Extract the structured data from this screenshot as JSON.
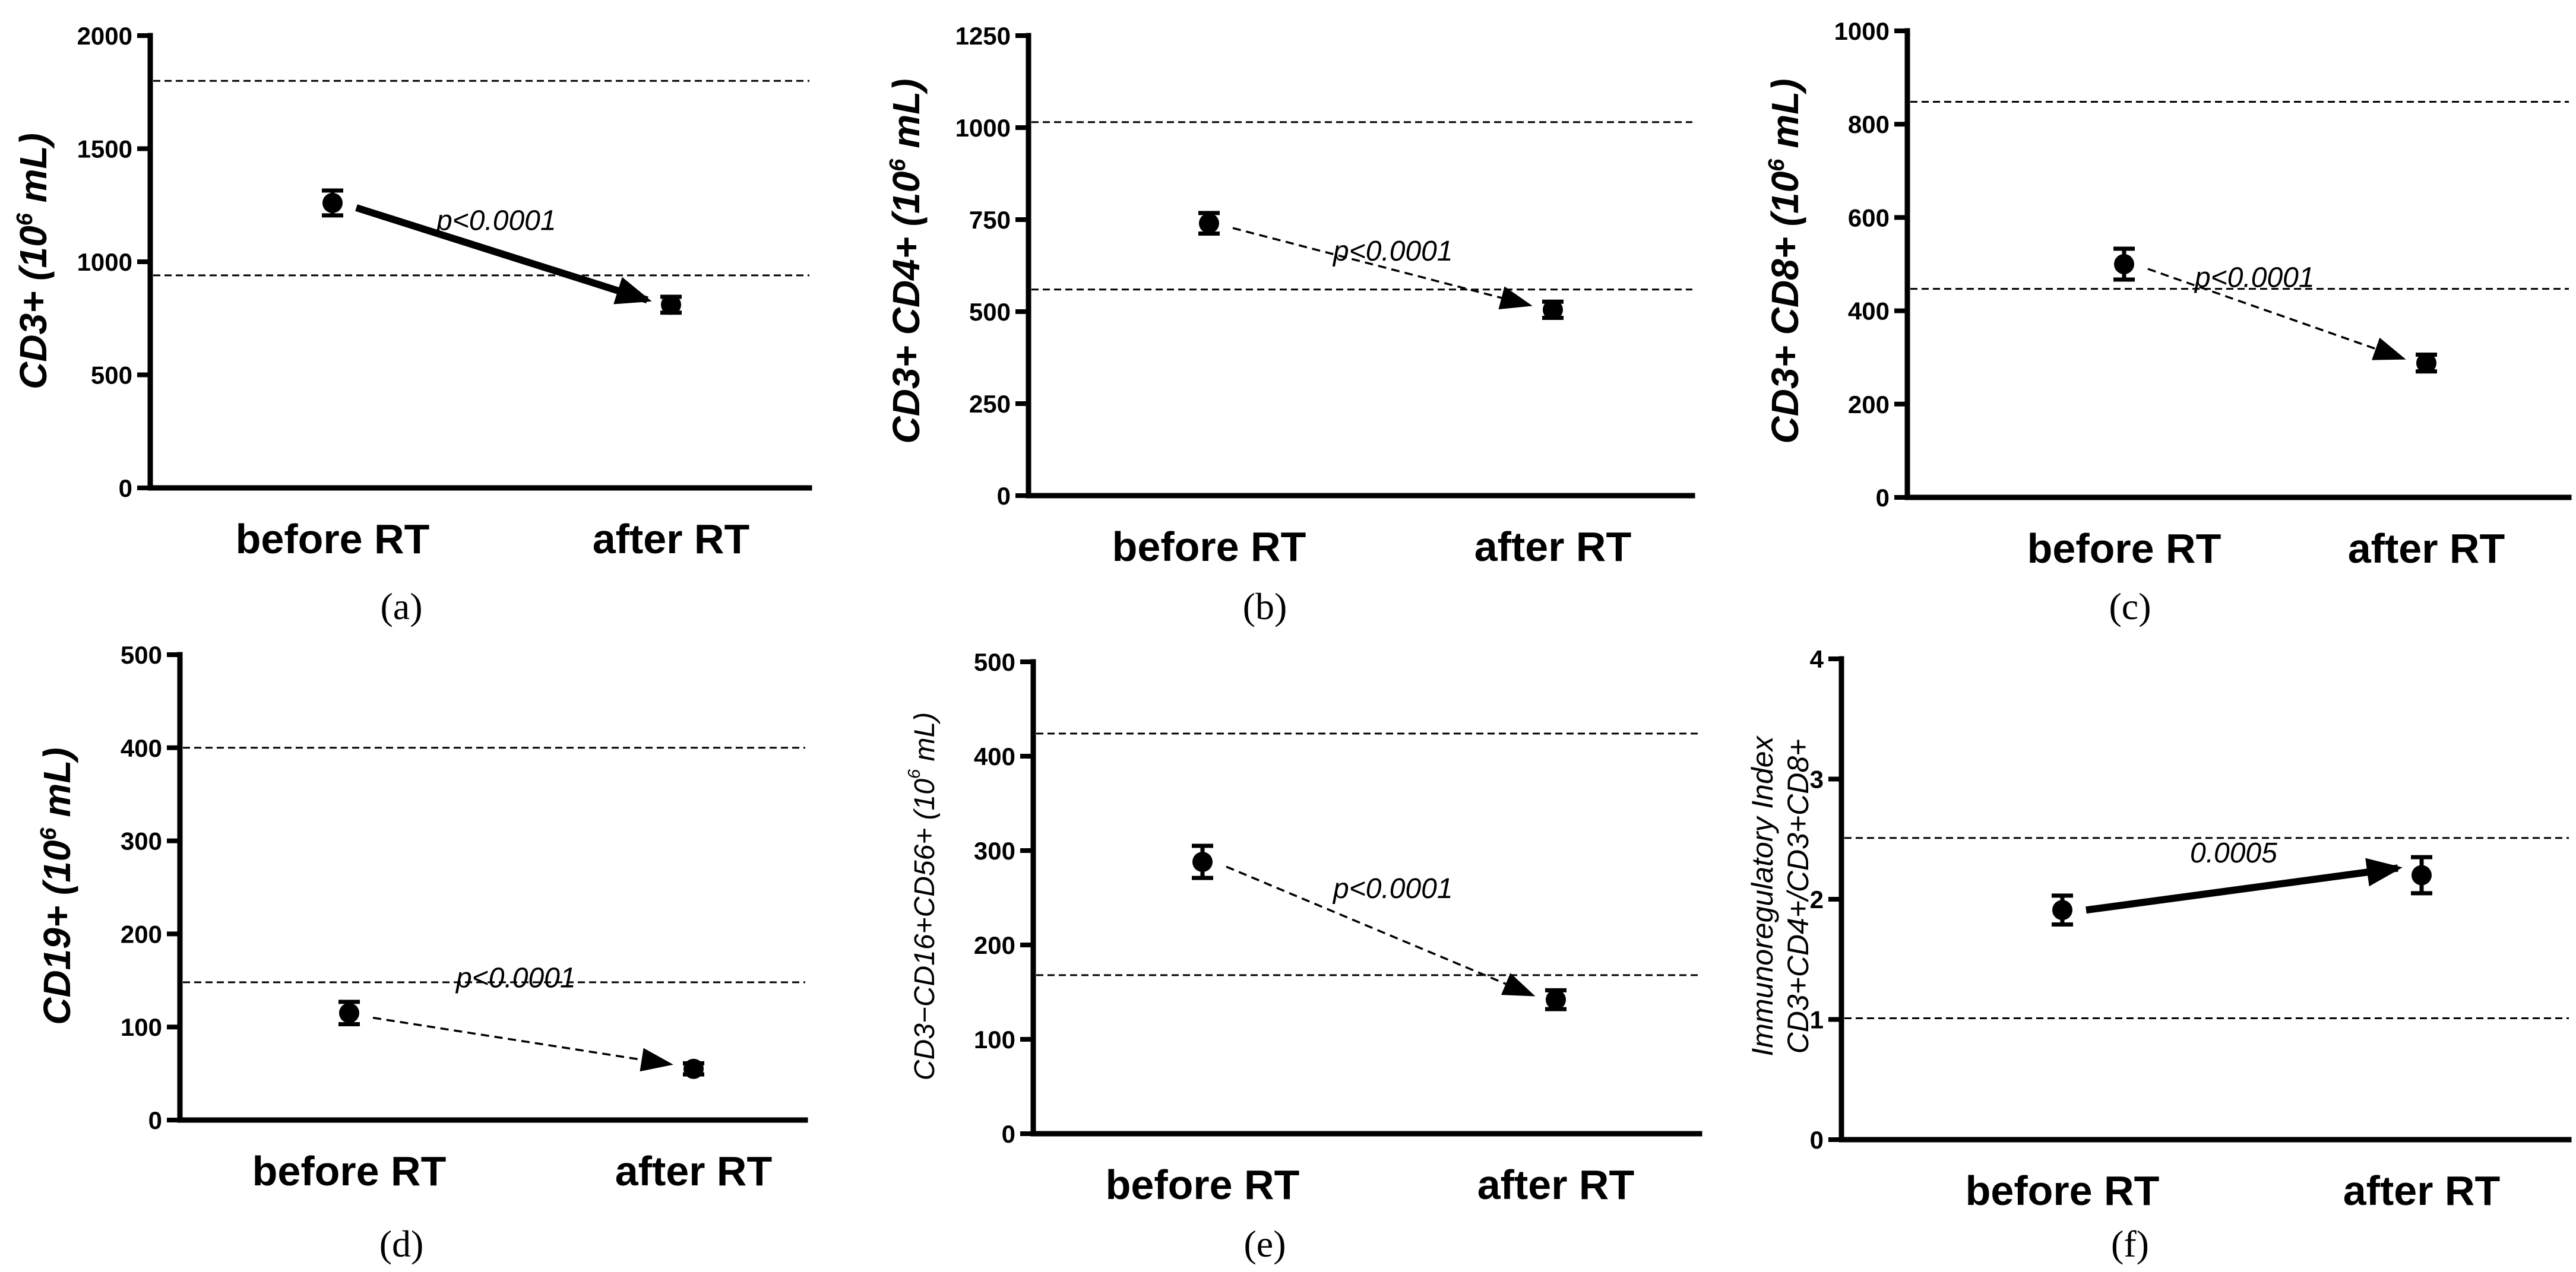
{
  "chart_data": [
    {
      "id": "a",
      "type": "scatter",
      "panel_label": "(a)",
      "ylabel": "CD3+ (10",
      "ylabel_sup": "6",
      "ylabel_tail": " mL)",
      "categories": [
        "before RT",
        "after RT"
      ],
      "yticks": [
        "0",
        "500",
        "1000",
        "1500",
        "2000"
      ],
      "ylim": [
        0,
        2000
      ],
      "values": [
        1260,
        810
      ],
      "errors": [
        55,
        35
      ],
      "reference_lines": [
        940,
        1800
      ],
      "annotation": "p<0.0001",
      "arrow_style": "solid"
    },
    {
      "id": "b",
      "type": "scatter",
      "panel_label": "(b)",
      "ylabel": "CD3+ CD4+ (10",
      "ylabel_sup": "6",
      "ylabel_tail": " mL)",
      "categories": [
        "before RT",
        "after RT"
      ],
      "yticks": [
        "0",
        "250",
        "500",
        "750",
        "1000",
        "1250"
      ],
      "ylim": [
        0,
        1250
      ],
      "values": [
        740,
        505
      ],
      "errors": [
        28,
        22
      ],
      "reference_lines": [
        560,
        1015
      ],
      "annotation": "p<0.0001",
      "arrow_style": "dashed"
    },
    {
      "id": "c",
      "type": "scatter",
      "panel_label": "(c)",
      "ylabel": "CD3+ CD8+ (10",
      "ylabel_sup": "6",
      "ylabel_tail": " mL)",
      "categories": [
        "before RT",
        "after RT"
      ],
      "yticks": [
        "0",
        "200",
        "400",
        "600",
        "800",
        "1000"
      ],
      "ylim": [
        0,
        1000
      ],
      "values": [
        500,
        288
      ],
      "errors": [
        33,
        18
      ],
      "reference_lines": [
        447,
        848
      ],
      "annotation": "p<0.0001",
      "arrow_style": "dashed"
    },
    {
      "id": "d",
      "type": "scatter",
      "panel_label": "(d)",
      "ylabel": "CD19+ (10",
      "ylabel_sup": "6",
      "ylabel_tail": " mL)",
      "categories": [
        "before RT",
        "after RT"
      ],
      "yticks": [
        "0",
        "100",
        "200",
        "300",
        "400",
        "500"
      ],
      "ylim": [
        0,
        500
      ],
      "values": [
        115,
        55
      ],
      "errors": [
        12,
        6
      ],
      "reference_lines": [
        148,
        400
      ],
      "annotation": "p<0.0001",
      "arrow_style": "dashed"
    },
    {
      "id": "e",
      "type": "scatter",
      "panel_label": "(e)",
      "ylabel": "CD3−CD16+CD56+ (10",
      "ylabel_sup": "6",
      "ylabel_tail": " mL)",
      "categories": [
        "before RT",
        "after RT"
      ],
      "yticks": [
        "0",
        "100",
        "200",
        "300",
        "400",
        "500"
      ],
      "ylim": [
        0,
        500
      ],
      "values": [
        288,
        142
      ],
      "errors": [
        17,
        10
      ],
      "reference_lines": [
        168,
        424
      ],
      "annotation": "p<0.0001",
      "arrow_style": "dashed"
    },
    {
      "id": "f",
      "type": "scatter",
      "panel_label": "(f)",
      "ylabel": "Immunoregulatory Index",
      "ylabel2": "CD3+CD4+/CD3+CD8+",
      "categories": [
        "before RT",
        "after RT"
      ],
      "yticks": [
        "0",
        "1",
        "2",
        "3",
        "4"
      ],
      "ylim": [
        0,
        4
      ],
      "values": [
        1.91,
        2.2
      ],
      "errors": [
        0.12,
        0.15
      ],
      "reference_lines": [
        1.01,
        2.51
      ],
      "annotation": "0.0005",
      "arrow_style": "solid"
    }
  ]
}
